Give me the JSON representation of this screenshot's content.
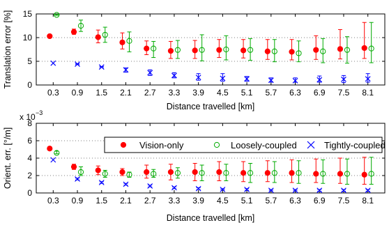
{
  "colors": {
    "vision": "#ff0000",
    "loose": "#00aa00",
    "tight": "#0000ff",
    "grid": "#000000"
  },
  "chart_data": [
    {
      "type": "scatter",
      "xlabel": "Distance travelled [km]",
      "ylabel": "Translation error [%]",
      "categories": [
        "0.3",
        "0.9",
        "1.5",
        "2.1",
        "2.7",
        "3.3",
        "3.9",
        "4.5",
        "5.1",
        "5.7",
        "6.3",
        "6.9",
        "7.5",
        "8.1"
      ],
      "ylim": [
        0,
        15
      ],
      "yticks": [
        "0",
        "5",
        "10",
        "15"
      ],
      "grid": "horizontal dotted",
      "series": [
        {
          "name": "Vision-only",
          "marker": "filled-circle",
          "values": [
            10.3,
            11.2,
            10.1,
            9.0,
            7.7,
            7.2,
            7.3,
            7.4,
            7.3,
            7.1,
            7.0,
            7.4,
            7.6,
            7.8
          ],
          "err_low": [
            10.3,
            10.7,
            8.9,
            7.6,
            6.4,
            5.6,
            5.6,
            5.8,
            5.7,
            5.4,
            5.3,
            5.4,
            5.5,
            5.6
          ],
          "err_high": [
            10.3,
            11.8,
            11.6,
            11.0,
            9.3,
            9.2,
            9.4,
            9.6,
            9.6,
            9.6,
            9.6,
            10.4,
            11.7,
            13.2
          ]
        },
        {
          "name": "Loosely-coupled",
          "marker": "open-circle",
          "values": [
            14.8,
            12.5,
            10.6,
            9.3,
            7.7,
            7.4,
            7.4,
            7.5,
            7.4,
            7.1,
            6.7,
            7.1,
            7.4,
            7.7
          ],
          "err_low": [
            14.7,
            11.3,
            9.0,
            7.0,
            5.8,
            5.6,
            5.1,
            5.3,
            5.2,
            4.9,
            4.9,
            4.7,
            4.6,
            4.7
          ],
          "err_high": [
            14.9,
            13.7,
            12.2,
            11.2,
            9.2,
            9.4,
            10.6,
            10.4,
            9.8,
            9.6,
            9.3,
            9.8,
            10.2,
            13.2
          ]
        },
        {
          "name": "Tightly-coupled",
          "marker": "x",
          "values": [
            4.6,
            4.4,
            3.8,
            3.2,
            2.6,
            2.0,
            1.6,
            1.4,
            1.3,
            1.0,
            0.9,
            1.1,
            1.2,
            1.3
          ],
          "err_low": [
            4.6,
            4.3,
            3.7,
            2.7,
            2.0,
            1.5,
            1.0,
            0.8,
            0.8,
            0.6,
            0.6,
            0.6,
            0.5,
            0.6
          ],
          "err_high": [
            4.6,
            4.5,
            3.9,
            3.6,
            3.2,
            2.6,
            2.4,
            2.4,
            1.8,
            1.5,
            1.5,
            1.9,
            2.0,
            2.4
          ]
        }
      ]
    },
    {
      "type": "scatter",
      "xlabel": "Distance travelled [km]",
      "ylabel": "Orient. err. [°/m]",
      "scale_label": "x 10",
      "scale_exponent": "−3",
      "categories": [
        "0.3",
        "0.9",
        "1.5",
        "2.1",
        "2.7",
        "3.3",
        "3.9",
        "4.5",
        "5.1",
        "5.7",
        "6.3",
        "6.9",
        "7.5",
        "8.1"
      ],
      "ylim": [
        0,
        8
      ],
      "yticks": [
        "0",
        "2",
        "4",
        "6",
        "8"
      ],
      "grid": "horizontal dotted",
      "legend": {
        "placement": "top",
        "entries": [
          "Vision-only",
          "Loosely-coupled",
          "Tightly-coupled"
        ]
      },
      "series": [
        {
          "name": "Vision-only",
          "marker": "filled-circle",
          "values": [
            5.1,
            3.0,
            2.6,
            2.4,
            2.4,
            2.4,
            2.4,
            2.4,
            2.3,
            2.3,
            2.3,
            2.2,
            2.2,
            2.1
          ],
          "err_low": [
            5.0,
            2.7,
            2.1,
            2.0,
            1.7,
            1.5,
            1.4,
            1.4,
            1.3,
            1.3,
            1.2,
            1.2,
            1.1,
            1.0
          ],
          "err_high": [
            5.3,
            3.3,
            3.1,
            2.8,
            3.2,
            3.3,
            3.4,
            3.6,
            3.6,
            3.7,
            3.8,
            3.9,
            4.0,
            4.1
          ]
        },
        {
          "name": "Loosely-coupled",
          "marker": "open-circle",
          "values": [
            4.6,
            2.4,
            2.2,
            2.1,
            2.2,
            2.3,
            2.3,
            2.3,
            2.3,
            2.3,
            2.3,
            2.2,
            2.2,
            2.2
          ],
          "err_low": [
            4.5,
            2.0,
            1.8,
            1.8,
            1.8,
            1.7,
            1.4,
            1.4,
            1.2,
            1.2,
            1.1,
            1.1,
            1.0,
            1.0
          ],
          "err_high": [
            4.8,
            3.0,
            2.6,
            2.4,
            2.7,
            2.9,
            3.2,
            3.3,
            3.4,
            3.6,
            3.7,
            3.8,
            3.9,
            4.1
          ]
        },
        {
          "name": "Tightly-coupled",
          "marker": "x",
          "values": [
            3.8,
            1.6,
            1.2,
            1.0,
            0.8,
            0.6,
            0.5,
            0.4,
            0.4,
            0.3,
            0.3,
            0.3,
            0.3,
            0.3
          ],
          "err_low": [
            3.8,
            1.5,
            1.1,
            0.9,
            0.7,
            0.5,
            0.4,
            0.35,
            0.3,
            0.25,
            0.25,
            0.2,
            0.2,
            0.2
          ],
          "err_high": [
            3.8,
            1.7,
            1.3,
            1.1,
            0.9,
            0.7,
            0.6,
            0.5,
            0.5,
            0.4,
            0.4,
            0.4,
            0.4,
            0.4
          ]
        }
      ]
    }
  ]
}
